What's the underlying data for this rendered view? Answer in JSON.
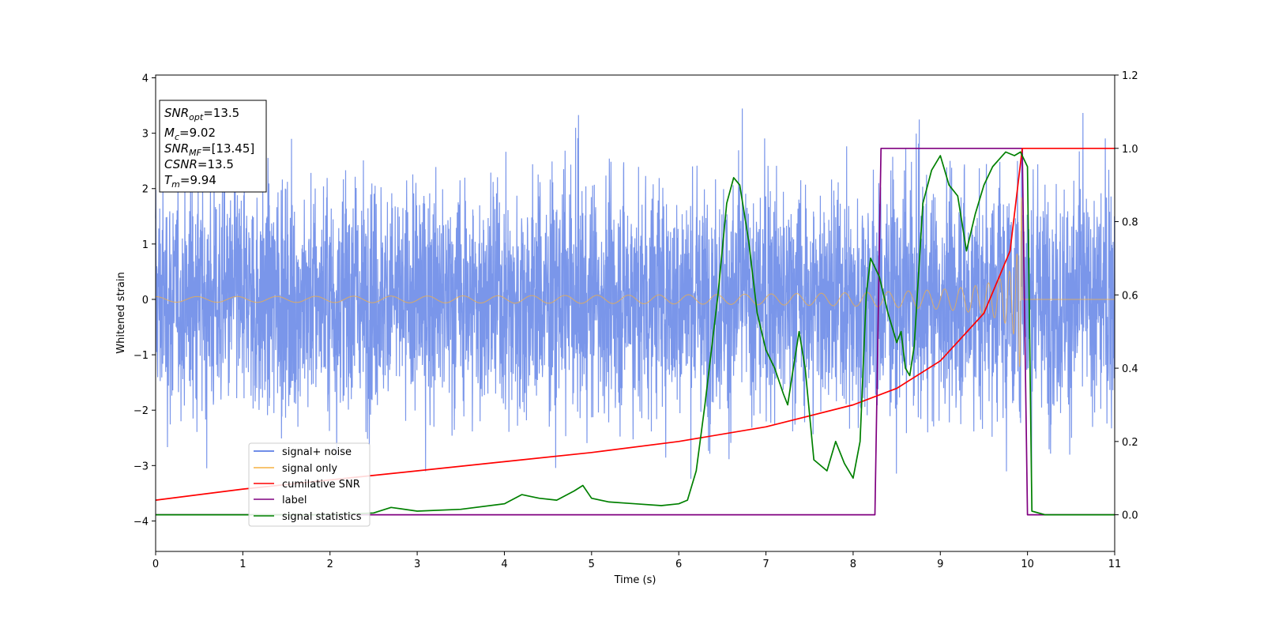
{
  "chart_data": {
    "type": "line",
    "xlabel": "Time (s)",
    "ylabel": "Whitened strain",
    "xlim": [
      0,
      11
    ],
    "ylim": [
      -4.55,
      4.05
    ],
    "y2lim": [
      -0.1,
      1.2
    ],
    "x_ticks": [
      0,
      1,
      2,
      3,
      4,
      5,
      6,
      7,
      8,
      9,
      10,
      11
    ],
    "y_ticks": [
      -4,
      -3,
      -2,
      -1,
      0,
      1,
      2,
      3,
      4
    ],
    "y2_ticks": [
      0.0,
      0.2,
      0.4,
      0.6,
      0.8,
      1.0,
      1.2
    ],
    "legend_position": "lower-left",
    "annotation_box": {
      "snr_opt": {
        "sym": "SNR",
        "sub": "opt",
        "val": "=13.5"
      },
      "mc": {
        "sym": "M",
        "sub": "c",
        "val": "=9.02"
      },
      "snr_mf": {
        "sym": "SNR",
        "sub": "MF",
        "val": "=[13.45]"
      },
      "csnr": {
        "sym": "CSNR",
        "sub": "",
        "val": "=13.5"
      },
      "tm": {
        "sym": "T",
        "sub": "m",
        "val": "=9.94"
      }
    },
    "series": [
      {
        "name": "signal+ noise",
        "color": "#4169e1",
        "axis": "left",
        "description": "whitened noise with injected chirp, amplitude band roughly -2.4 to 2.6, spikes to about 3.6",
        "band": [
          -2.4,
          2.6
        ],
        "x_range": [
          0,
          11
        ]
      },
      {
        "name": "signal only",
        "color": "#f5b041",
        "axis": "left",
        "envelope": {
          "t_merge": 9.94,
          "amp_start": 0.05,
          "amp_peak": 1.85
        },
        "x_range": [
          0,
          10
        ]
      },
      {
        "name": "cumilative SNR",
        "color": "#ff0000",
        "axis": "right",
        "x": [
          0,
          1,
          2,
          3,
          4,
          5,
          6,
          7,
          8,
          8.5,
          9,
          9.5,
          9.8,
          9.94,
          11
        ],
        "y": [
          0.04,
          0.07,
          0.095,
          0.12,
          0.145,
          0.17,
          0.2,
          0.24,
          0.3,
          0.345,
          0.42,
          0.55,
          0.72,
          1.0,
          1.0
        ]
      },
      {
        "name": "label",
        "color": "#800080",
        "axis": "right",
        "x": [
          0,
          8.25,
          8.32,
          9.94,
          10.0,
          11
        ],
        "y": [
          0.0,
          0.0,
          1.0,
          1.0,
          0.0,
          0.0
        ]
      },
      {
        "name": "signal statistics",
        "color": "#008000",
        "axis": "right",
        "x": [
          0,
          2,
          2.5,
          2.7,
          3.0,
          3.5,
          4.0,
          4.2,
          4.3,
          4.4,
          4.6,
          4.8,
          4.9,
          5.0,
          5.2,
          5.5,
          5.8,
          6.0,
          6.1,
          6.2,
          6.3,
          6.45,
          6.55,
          6.63,
          6.7,
          6.8,
          6.9,
          7.0,
          7.1,
          7.2,
          7.25,
          7.3,
          7.38,
          7.45,
          7.55,
          7.7,
          7.8,
          7.9,
          8.0,
          8.08,
          8.15,
          8.2,
          8.3,
          8.4,
          8.5,
          8.55,
          8.6,
          8.65,
          8.7,
          8.8,
          8.9,
          9.0,
          9.1,
          9.2,
          9.3,
          9.4,
          9.5,
          9.6,
          9.75,
          9.85,
          9.92,
          10.0,
          10.05,
          10.2,
          11
        ],
        "y": [
          0.0,
          0.0,
          0.005,
          0.02,
          0.01,
          0.015,
          0.03,
          0.055,
          0.05,
          0.045,
          0.04,
          0.065,
          0.08,
          0.045,
          0.035,
          0.03,
          0.025,
          0.03,
          0.04,
          0.12,
          0.3,
          0.6,
          0.85,
          0.92,
          0.9,
          0.75,
          0.55,
          0.45,
          0.4,
          0.33,
          0.3,
          0.38,
          0.5,
          0.4,
          0.15,
          0.12,
          0.2,
          0.14,
          0.1,
          0.2,
          0.6,
          0.7,
          0.65,
          0.55,
          0.47,
          0.5,
          0.4,
          0.38,
          0.46,
          0.85,
          0.94,
          0.98,
          0.9,
          0.87,
          0.72,
          0.82,
          0.9,
          0.95,
          0.99,
          0.98,
          0.99,
          0.95,
          0.01,
          0.0,
          0.0
        ]
      }
    ]
  }
}
